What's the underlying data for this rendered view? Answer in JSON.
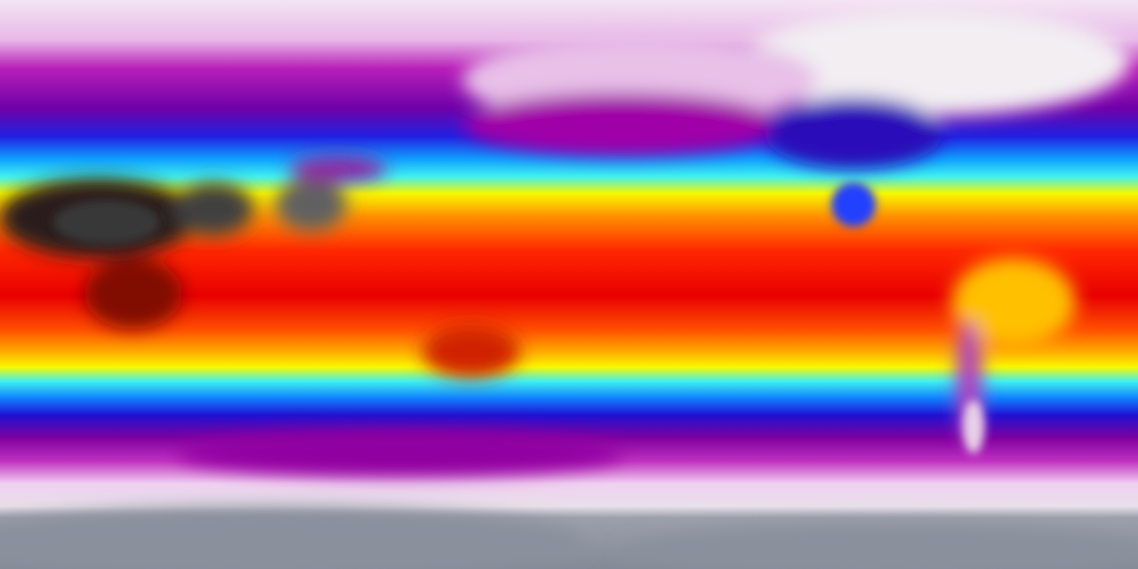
{
  "map": {
    "projection": "equirectangular",
    "variable": "temperature",
    "colormap": [
      "#f4e4f4",
      "#c020c0",
      "#8000a0",
      "#2020e0",
      "#0060ff",
      "#40f0f0",
      "#f8f800",
      "#ff9000",
      "#ff2000",
      "#e00000",
      "#202020",
      "#8a8f9c"
    ],
    "colors": {
      "polar_ice": "#8a8f9c",
      "cold": "#f0d8f0",
      "cool": "#b010b0",
      "mild": "#2020e0",
      "temperate": "#40f0f0",
      "warm": "#f8f800",
      "hot": "#ff1000",
      "extreme": "#202020"
    }
  }
}
